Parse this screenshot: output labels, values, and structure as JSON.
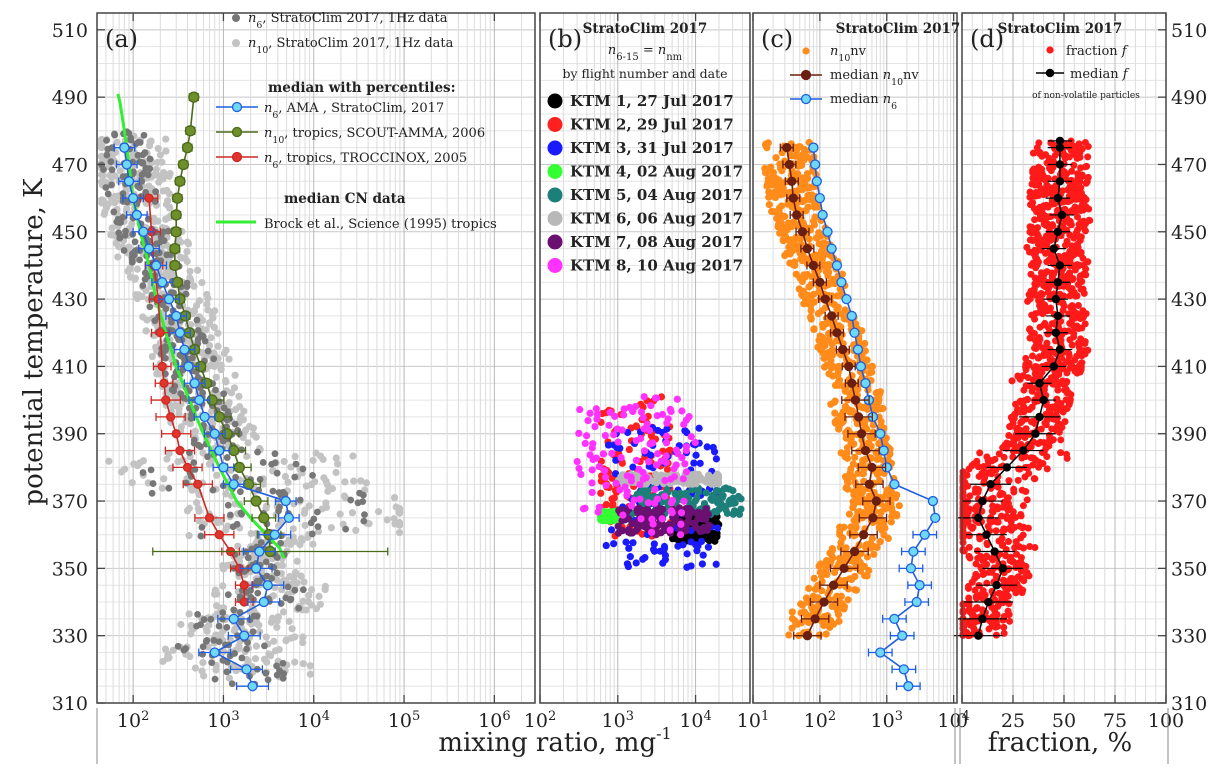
{
  "y_axis": {
    "label": "potential temperature, K",
    "ticks": [
      310,
      330,
      350,
      370,
      390,
      410,
      430,
      450,
      470,
      490,
      510
    ],
    "range": [
      310,
      510
    ]
  },
  "x_axis_label_mixing": "mixing ratio, mg",
  "x_axis_label_mixing_sup": "-1",
  "x_axis_label_fraction": "fraction, %",
  "panels": [
    {
      "id": "a",
      "letter": "(a)",
      "xmin_log": 1.6,
      "xmax_log": 6.45,
      "ticks": [
        {
          "v": 100,
          "t": "10",
          "s": "2"
        },
        {
          "v": 1000,
          "t": "10",
          "s": "3"
        },
        {
          "v": 10000,
          "t": "10",
          "s": "4"
        },
        {
          "v": 100000,
          "t": "10",
          "s": "5"
        },
        {
          "v": 1000000,
          "t": "10",
          "s": "6"
        }
      ]
    },
    {
      "id": "b",
      "letter": "(b)",
      "xmin_log": 2.0,
      "xmax_log": 4.7,
      "ticks": [
        {
          "v": 100,
          "t": "10",
          "s": "2"
        },
        {
          "v": 1000,
          "t": "10",
          "s": "3"
        },
        {
          "v": 10000,
          "t": "10",
          "s": "4"
        }
      ]
    },
    {
      "id": "c",
      "letter": "(c)",
      "xmin_log": 1.0,
      "xmax_log": 4.05,
      "ticks": [
        {
          "v": 10,
          "t": "10",
          "s": "1"
        },
        {
          "v": 100,
          "t": "10",
          "s": "2"
        },
        {
          "v": 1000,
          "t": "10",
          "s": "3"
        },
        {
          "v": 10000,
          "t": "10",
          "s": "4"
        }
      ]
    },
    {
      "id": "d",
      "letter": "(d)",
      "xmin": 0,
      "xmax": 100,
      "ticks": [
        {
          "v": 0,
          "t": "0"
        },
        {
          "v": 25,
          "t": "25"
        },
        {
          "v": 50,
          "t": "50"
        },
        {
          "v": 75,
          "t": "75"
        },
        {
          "v": 100,
          "t": "100"
        }
      ]
    }
  ],
  "legend_a": {
    "items": [
      {
        "sym": "n",
        "sub": "6",
        "rest": ", StratoClim 2017, 1Hz data",
        "color": "#777777"
      },
      {
        "sym": "n",
        "sub": "10",
        "rest": ", StratoClim 2017, 1Hz data",
        "color": "#c3c3c3"
      }
    ],
    "header1": "median with percentiles:",
    "medians": [
      {
        "sym": "n",
        "sub": "6",
        "rest": ", AMA , StratoClim, 2017",
        "color": "#1f5fe0",
        "fill": "#6fd8f5"
      },
      {
        "sym": "n",
        "sub": "10",
        "rest": ", tropics, SCOUT-AMMA, 2006",
        "color": "#4a6a1a",
        "fill": "#6f8f2a"
      },
      {
        "sym": "n",
        "sub": "6",
        "rest": ", tropics, TROCCINOX, 2005",
        "color": "#cc2a22",
        "fill": "#e0342c"
      }
    ],
    "header2": "median CN data",
    "brock": {
      "text": "Brock et al., Science (1995) tropics",
      "color": "#33ee33"
    }
  },
  "legend_b": {
    "title": "StratoClim 2017",
    "eq_left": "n",
    "eq_left_sub": "6-15",
    "eq_mid": " = n",
    "eq_right_sub": "nm",
    "subtitle": "by flight number and date",
    "flights": [
      {
        "label": "KTM 1, 27 Jul 2017",
        "color": "#000000"
      },
      {
        "label": "KTM 2, 29 Jul 2017",
        "color": "#ff2020"
      },
      {
        "label": "KTM 3, 31 Jul 2017",
        "color": "#1a1aff"
      },
      {
        "label": "KTM 4, 02 Aug 2017",
        "color": "#33ff33"
      },
      {
        "label": "KTM 5, 04 Aug 2017",
        "color": "#1d7f7a"
      },
      {
        "label": "KTM 6, 06 Aug 2017",
        "color": "#b8b8b8"
      },
      {
        "label": "KTM 7, 08 Aug 2017",
        "color": "#6a1070"
      },
      {
        "label": "KTM 8, 10 Aug 2017",
        "color": "#ff33ff"
      }
    ]
  },
  "legend_c": {
    "title": "StratoClim 2017",
    "items": [
      {
        "sym": "n",
        "sub": "10",
        "rest": "nv",
        "color": "#ff8c1a"
      },
      {
        "pre": "median ",
        "sym": "n",
        "sub": "10",
        "rest": "nv",
        "color": "#6b1f10"
      },
      {
        "pre": "median ",
        "sym": "n",
        "sub": "6",
        "rest": "",
        "color": "#1f5fe0"
      }
    ]
  },
  "legend_d": {
    "title": "StratoClim 2017",
    "fraction_label": "fraction ",
    "fraction_sym": "f",
    "median_label": "median ",
    "median_sym": "f",
    "note": "of non-volatile particles"
  },
  "colors": {
    "n6_scatter": "#777777",
    "n10_scatter": "#c3c3c3",
    "orange": "#ff8c1a",
    "red": "#ff1a1a",
    "dark": "#6b1f10"
  },
  "chart_data": [
    {
      "type": "scatter",
      "panel": "a",
      "xlabel": "mixing ratio, mg-1",
      "ylabel": "potential temperature, K",
      "xscale": "log",
      "xlim": [
        40,
        2800000
      ],
      "ylim": [
        310,
        510
      ],
      "series": [
        {
          "name": "n6, AMA , StratoClim, 2017",
          "x": [
            2100,
            1800,
            800,
            1700,
            1300,
            2800,
            3100,
            2300,
            2500,
            3700,
            5300,
            4900,
            1300,
            1000,
            900,
            800,
            620,
            540,
            480,
            410,
            370,
            330,
            300,
            250,
            210,
            180,
            150,
            130,
            110,
            100,
            90,
            85,
            80,
            80
          ],
          "y": [
            315,
            320,
            325,
            330,
            335,
            340,
            345,
            350,
            355,
            360,
            365,
            370,
            375,
            380,
            385,
            390,
            395,
            400,
            405,
            410,
            415,
            420,
            425,
            430,
            435,
            440,
            445,
            450,
            455,
            460,
            465,
            470,
            475,
            475
          ]
        },
        {
          "name": "n10, tropics, SCOUT-AMMA, 2006",
          "x": [
            3300,
            3200,
            2800,
            2300,
            1900,
            1500,
            1300,
            1100,
            900,
            750,
            650,
            560,
            480,
            420,
            380,
            330,
            310,
            290,
            290,
            300,
            300,
            310,
            330,
            360,
            400,
            430,
            470
          ],
          "y": [
            355,
            360,
            365,
            370,
            375,
            380,
            385,
            390,
            395,
            400,
            405,
            410,
            415,
            420,
            425,
            430,
            435,
            440,
            445,
            450,
            455,
            460,
            465,
            470,
            475,
            480,
            490
          ]
        },
        {
          "name": "n6, tropics, TROCCINOX, 2005",
          "x": [
            1700,
            1700,
            1500,
            1200,
            900,
            700,
            520,
            400,
            330,
            300,
            260,
            230,
            220,
            210,
            200,
            190,
            170,
            160,
            150
          ],
          "y": [
            340,
            345,
            350,
            355,
            360,
            365,
            375,
            380,
            385,
            390,
            395,
            400,
            405,
            410,
            420,
            430,
            440,
            450,
            460
          ]
        },
        {
          "name": "Brock et al., Science (1995) tropics",
          "x": [
            4700,
            4200,
            3000,
            2000,
            1400,
            900,
            600,
            420,
            300,
            230,
            180,
            150,
            120,
            100,
            90,
            80,
            72,
            68
          ],
          "y": [
            353,
            356,
            360,
            365,
            370,
            380,
            390,
            400,
            410,
            420,
            430,
            440,
            450,
            460,
            470,
            480,
            488,
            491
          ]
        }
      ]
    },
    {
      "type": "scatter",
      "panel": "b",
      "xlabel": "mixing ratio, mg-1",
      "xscale": "log",
      "xlim": [
        100,
        50000
      ],
      "ylim": [
        310,
        510
      ],
      "series": [
        {
          "name": "KTM 1, 27 Jul 2017",
          "x": [
            [
              5000,
              20000
            ]
          ],
          "y": [
            [
              358,
              366
            ]
          ]
        },
        {
          "name": "KTM 2, 29 Jul 2017",
          "x": [
            [
              600,
              5000
            ]
          ],
          "y": [
            [
              359,
              401
            ]
          ]
        },
        {
          "name": "KTM 3, 31 Jul 2017",
          "x": [
            [
              700,
              20000
            ]
          ],
          "y": [
            [
              350,
              392
            ]
          ]
        },
        {
          "name": "KTM 4, 02 Aug 2017",
          "x": [
            [
              600,
              1200
            ]
          ],
          "y": [
            [
              364,
              367
            ]
          ]
        },
        {
          "name": "KTM 5, 04 Aug 2017",
          "x": [
            [
              1500,
              40000
            ]
          ],
          "y": [
            [
              366,
              374
            ]
          ]
        },
        {
          "name": "KTM 6, 06 Aug 2017",
          "x": [
            [
              1000,
              20000
            ]
          ],
          "y": [
            [
              375,
              378
            ]
          ]
        },
        {
          "name": "KTM 7, 08 Aug 2017",
          "x": [
            [
              1000,
              15000
            ]
          ],
          "y": [
            [
              360,
              368
            ]
          ]
        },
        {
          "name": "KTM 8, 10 Aug 2017",
          "x": [
            [
              300,
              10000
            ]
          ],
          "y": [
            [
              360,
              401
            ]
          ]
        }
      ]
    },
    {
      "type": "scatter",
      "panel": "c",
      "xlabel": "mixing ratio, mg-1",
      "xscale": "log",
      "xlim": [
        10,
        11000
      ],
      "ylim": [
        310,
        510
      ],
      "series": [
        {
          "name": "median n10nv",
          "x": [
            65,
            85,
            115,
            160,
            230,
            330,
            450,
            620,
            700,
            550,
            600,
            480,
            420,
            380,
            340,
            300,
            270,
            220,
            180,
            150,
            120,
            100,
            80,
            65,
            55,
            45,
            40,
            38,
            35,
            32
          ],
          "y": [
            330,
            335,
            340,
            345,
            350,
            355,
            360,
            365,
            370,
            375,
            380,
            385,
            390,
            395,
            400,
            405,
            410,
            415,
            420,
            425,
            430,
            435,
            440,
            445,
            450,
            455,
            460,
            465,
            470,
            475
          ]
        },
        {
          "name": "median n6",
          "x": [
            2100,
            1800,
            800,
            1700,
            1300,
            2800,
            3100,
            2300,
            2500,
            3700,
            5300,
            4900,
            1300,
            1000,
            900,
            800,
            620,
            540,
            480,
            410,
            370,
            330,
            300,
            250,
            210,
            180,
            150,
            130,
            110,
            100,
            90,
            85,
            80,
            80
          ],
          "y": [
            315,
            320,
            325,
            330,
            335,
            340,
            345,
            350,
            355,
            360,
            365,
            370,
            375,
            380,
            385,
            390,
            395,
            400,
            405,
            410,
            415,
            420,
            425,
            430,
            435,
            440,
            445,
            450,
            455,
            460,
            465,
            470,
            475,
            475
          ]
        }
      ]
    },
    {
      "type": "scatter",
      "panel": "d",
      "xlabel": "fraction, %",
      "xlim": [
        0,
        100
      ],
      "ylim": [
        310,
        510
      ],
      "series": [
        {
          "name": "median f",
          "x": [
            8,
            10,
            13,
            17,
            20,
            16,
            12,
            8,
            10,
            14,
            22,
            30,
            36,
            38,
            40,
            38,
            45,
            48,
            46,
            47,
            46,
            47,
            48,
            45,
            47,
            49,
            47,
            48,
            48,
            48,
            48
          ],
          "y": [
            330,
            335,
            340,
            345,
            350,
            355,
            360,
            365,
            370,
            375,
            380,
            385,
            390,
            395,
            400,
            405,
            410,
            415,
            420,
            425,
            430,
            435,
            440,
            445,
            450,
            455,
            460,
            465,
            470,
            475,
            477
          ]
        }
      ]
    }
  ]
}
